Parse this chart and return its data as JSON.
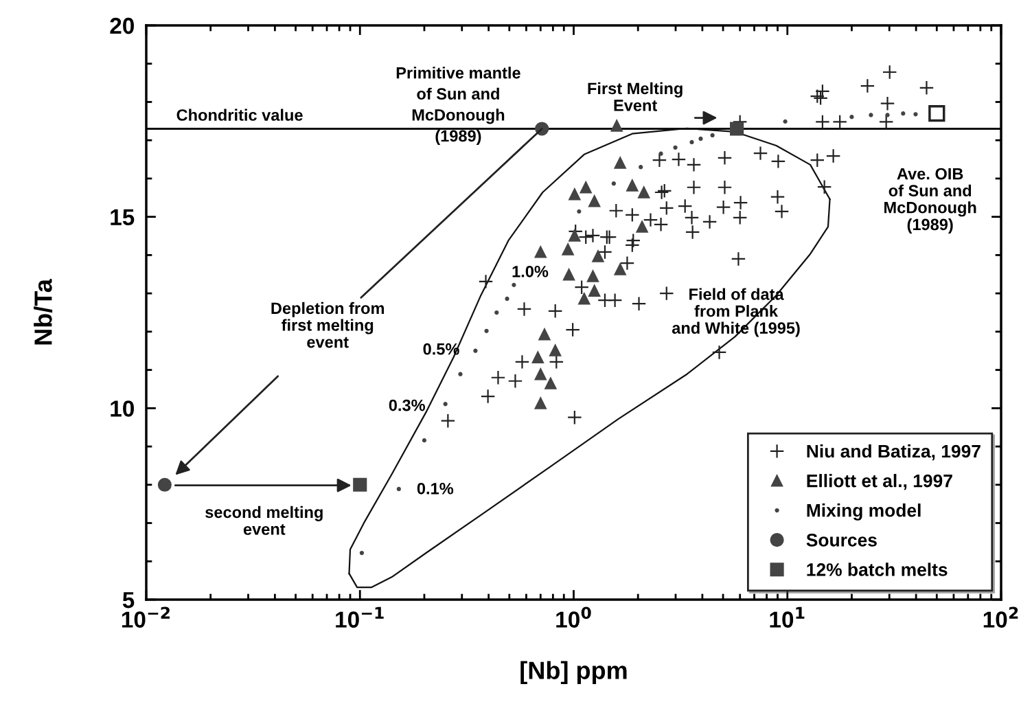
{
  "chart_data": {
    "type": "scatter",
    "xlabel": "[Nb] ppm",
    "ylabel": "Nb/Ta",
    "log": "x",
    "xlim": [
      0.01,
      100
    ],
    "ylim": [
      5,
      20
    ],
    "xticks": [
      {
        "value": 0.01,
        "label": "10$^{−2}$"
      },
      {
        "value": 0.1,
        "label": "10$^{−1}$"
      },
      {
        "value": 1,
        "label": "10$^{0}$"
      },
      {
        "value": 10,
        "label": "10$^{1}$"
      },
      {
        "value": 100,
        "label": "10$^{2}$"
      }
    ],
    "yticks": [
      5,
      10,
      15,
      20
    ],
    "grid": false,
    "legend": "bottom right",
    "ref_lines": [
      {
        "axis": "y",
        "value": 17.3,
        "label": "Chondritic value",
        "color": "#111111",
        "line_style": "solid"
      }
    ],
    "annotations": [
      "Primitive mantle\nof Sun and\nMcDonough\n(1989)",
      "First Melting\nEvent",
      "Ave. OIB\nof Sun and\nMcDonough\n(1989)",
      {
        "text": "Depletion from\nfirst melting\nevent",
        "x": 0.71,
        "y": 17.3
      },
      "second melting\nevent",
      "Field of data\nfrom Plank\nand White (1995)",
      "1.0%",
      "0.5%",
      "0.3%",
      "0.1%"
    ],
    "series": [
      {
        "name": "Niu and Batiza, 1997",
        "marker": "cross",
        "color": "#222222",
        "x": [
          30.1,
          23.7,
          44.8,
          14.6,
          13.8,
          14.3,
          29.4,
          14.6,
          17.6,
          29.0,
          6.0,
          2.52,
          3.1,
          3.65,
          5.09,
          7.48,
          9.06,
          13.8,
          16.4,
          3.65,
          5.09,
          14.9,
          2.66,
          3.32,
          5.02,
          6.04,
          9.0,
          9.41,
          2.56,
          3.57,
          4.33,
          3.6,
          6.0,
          5.9,
          1.58,
          1.88,
          2.29,
          2.72,
          2.58,
          1.02,
          1.23,
          1.47,
          1.9,
          0.388,
          0.587,
          0.82,
          0.99,
          0.574,
          0.443,
          0.533,
          0.397,
          0.258,
          1.01,
          1.4,
          1.56,
          2.02,
          1.09,
          1.43,
          1.14,
          1.88,
          1.78,
          1.4,
          0.83,
          4.8,
          2.72
        ],
        "values": [
          18.78,
          18.42,
          18.37,
          18.28,
          18.15,
          18.1,
          17.96,
          17.48,
          17.48,
          17.48,
          17.48,
          16.48,
          16.5,
          16.36,
          16.54,
          16.66,
          16.45,
          16.48,
          16.59,
          15.77,
          15.77,
          15.78,
          15.68,
          15.28,
          15.25,
          15.37,
          15.52,
          15.14,
          14.8,
          14.98,
          14.87,
          14.6,
          14.98,
          13.9,
          15.16,
          15.05,
          14.92,
          15.23,
          15.64,
          14.62,
          14.51,
          14.47,
          14.38,
          13.31,
          12.59,
          12.54,
          12.05,
          11.21,
          10.8,
          10.71,
          10.31,
          9.67,
          9.76,
          12.82,
          12.82,
          12.73,
          13.16,
          14.47,
          14.47,
          14.26,
          13.79,
          14.08,
          11.21,
          11.46,
          13.0
        ]
      },
      {
        "name": "Elliott et al., 1997",
        "marker": "triangle",
        "color": "#444444",
        "x": [
          1.59,
          1.65,
          1.14,
          1.01,
          1.25,
          1.88,
          2.13,
          2.09,
          1.01,
          0.7,
          0.94,
          1.3,
          1.65,
          0.95,
          1.23,
          1.25,
          1.12,
          0.73,
          0.82,
          0.68,
          0.7,
          0.78,
          0.7
        ],
        "values": [
          17.38,
          16.41,
          15.77,
          15.59,
          15.41,
          15.82,
          15.64,
          14.74,
          14.51,
          14.08,
          14.15,
          13.97,
          13.63,
          13.49,
          13.45,
          13.07,
          12.86,
          11.93,
          11.51,
          11.33,
          10.89,
          10.65,
          10.13
        ]
      },
      {
        "name": "Mixing model",
        "marker": "circle",
        "color": "#444444",
        "x": [
          0.102,
          0.152,
          0.2,
          0.251,
          0.295,
          0.347,
          0.391,
          0.436,
          0.488,
          0.525,
          1.06,
          1.54,
          2.06,
          2.56,
          2.99,
          3.57,
          3.93,
          4.46,
          9.77,
          20.0,
          24.6,
          29.4,
          34.8,
          39.8
        ],
        "values": [
          6.22,
          7.89,
          9.16,
          10.11,
          10.89,
          11.5,
          12.02,
          12.5,
          12.86,
          13.22,
          15.14,
          15.87,
          16.3,
          16.65,
          16.81,
          16.95,
          17.04,
          17.13,
          17.49,
          17.61,
          17.66,
          17.66,
          17.7,
          17.68
        ]
      },
      {
        "name": "Sources",
        "marker": "circle",
        "color": "#444444",
        "x": [
          0.71,
          0.0122
        ],
        "values": [
          17.3,
          8.0
        ]
      },
      {
        "name": "12% batch melts",
        "marker": "square",
        "color": "#444444",
        "x": [
          5.8,
          0.1
        ],
        "values": [
          17.3,
          8.0
        ]
      },
      {
        "marker": "square",
        "color": "#222222",
        "x": [
          50
        ],
        "values": [
          17.7
        ]
      },
      {
        "type": "line",
        "marker": "none",
        "line_style": "solid",
        "color": "#111111",
        "x": [
          0.089,
          0.09,
          0.105,
          0.141,
          0.204,
          0.274,
          0.368,
          0.495,
          0.716,
          1.12,
          1.88,
          3.39,
          5.69,
          8.87,
          12.8,
          15.8
        ],
        "values": [
          5.68,
          6.31,
          7.03,
          8.28,
          9.9,
          11.33,
          12.95,
          14.38,
          15.64,
          16.63,
          17.17,
          17.31,
          17.22,
          16.86,
          16.36,
          15.46
        ]
      },
      {
        "type": "line",
        "marker": "none",
        "line_style": "solid",
        "color": "#111111",
        "x": [
          15.8,
          15.5,
          12.8,
          8.87,
          5.69,
          3.39,
          1.62,
          0.772,
          0.368,
          0.204,
          0.141,
          0.113,
          0.097,
          0.089
        ],
        "values": [
          15.46,
          14.74,
          14.03,
          12.95,
          11.87,
          10.89,
          9.72,
          8.46,
          7.21,
          6.22,
          5.59,
          5.32,
          5.32,
          5.68
        ]
      }
    ]
  }
}
